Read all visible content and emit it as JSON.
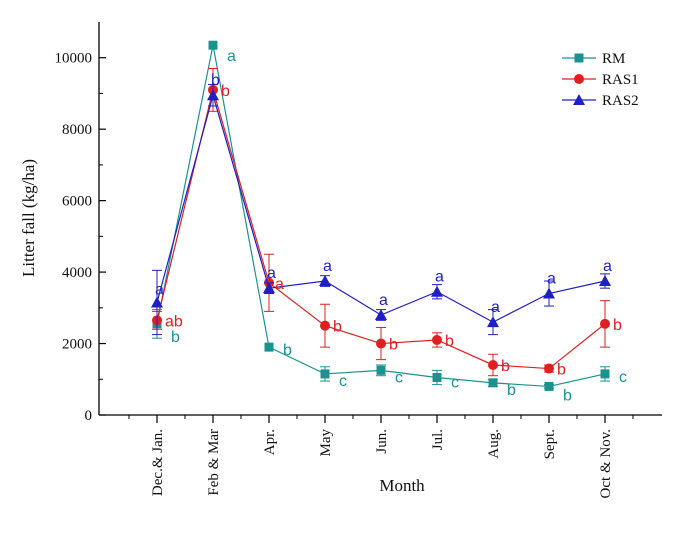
{
  "chart_data": {
    "type": "line",
    "title": "",
    "xlabel": "Month",
    "ylabel": "Litter fall (kg/ha)",
    "ylim": [
      0,
      11000
    ],
    "yticks": [
      0,
      2000,
      4000,
      6000,
      8000,
      10000
    ],
    "grid": false,
    "legend_position": "top-right",
    "categories": [
      "Dec.& Jan.",
      "Feb & Mar",
      "Apr.",
      "May",
      "Jun.",
      "Jul.",
      "Aug.",
      "Sept.",
      "Oct & Nov."
    ],
    "series": [
      {
        "name": "RM",
        "color": "#1a9390",
        "marker": "square",
        "values": [
          2550,
          10350,
          1900,
          1150,
          1250,
          1050,
          900,
          800,
          1150
        ],
        "errors": [
          400,
          0,
          0,
          200,
          150,
          200,
          100,
          50,
          200
        ],
        "letters": [
          "b",
          "a",
          "b",
          "c",
          "c",
          "c",
          "b",
          "b",
          "c"
        ]
      },
      {
        "name": "RAS1",
        "color": "#e02020",
        "marker": "circle",
        "values": [
          2650,
          9100,
          3700,
          2500,
          2000,
          2100,
          1400,
          1300,
          2550
        ],
        "errors": [
          250,
          600,
          800,
          600,
          450,
          200,
          300,
          100,
          650
        ],
        "letters": [
          "ab",
          "b",
          "a",
          "b",
          "b",
          "b",
          "b",
          "b",
          "b"
        ]
      },
      {
        "name": "RAS2",
        "color": "#1f1fc8",
        "marker": "triangle",
        "values": [
          3150,
          8950,
          3550,
          3750,
          2800,
          3450,
          2600,
          3400,
          3750
        ],
        "errors": [
          900,
          300,
          150,
          150,
          150,
          200,
          350,
          350,
          200
        ],
        "letters": [
          "a",
          "b",
          "a",
          "a",
          "a",
          "a",
          "a",
          "a",
          "a"
        ]
      }
    ]
  }
}
